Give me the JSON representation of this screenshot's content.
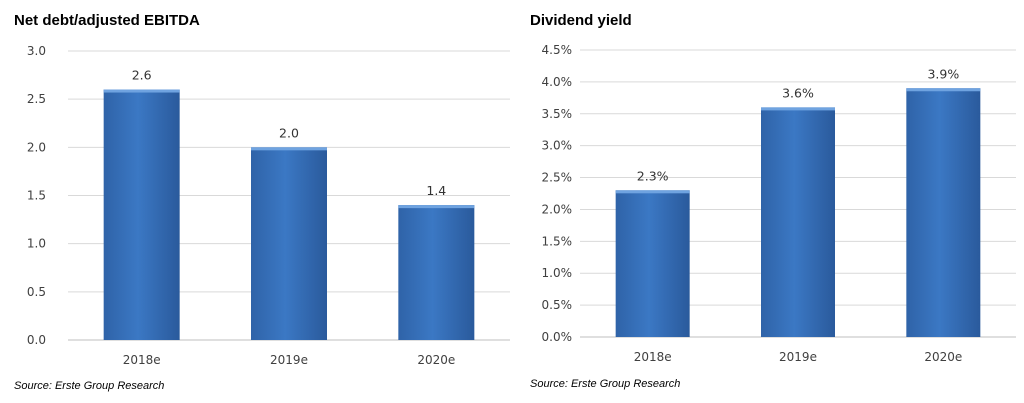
{
  "chart_data": [
    {
      "type": "bar",
      "title": "Net debt/adjusted EBITDA",
      "categories": [
        "2018e",
        "2019e",
        "2020e"
      ],
      "values": [
        2.6,
        2.0,
        1.4
      ],
      "data_labels": [
        "2.6",
        "2.0",
        "1.4"
      ],
      "ylim": [
        0,
        3.0
      ],
      "yticks": [
        "0.0",
        "0.5",
        "1.0",
        "1.5",
        "2.0",
        "2.5",
        "3.0"
      ],
      "ytick_values": [
        0,
        0.5,
        1.0,
        1.5,
        2.0,
        2.5,
        3.0
      ],
      "grid": true,
      "bar_color": "#3b78c4",
      "source": "Source: Erste Group Research"
    },
    {
      "type": "bar",
      "title": "Dividend yield",
      "categories": [
        "2018e",
        "2019e",
        "2020e"
      ],
      "values": [
        2.3,
        3.6,
        3.9
      ],
      "data_labels": [
        "2.3%",
        "3.6%",
        "3.9%"
      ],
      "ylim": [
        0,
        4.5
      ],
      "yticks": [
        "0.0%",
        "0.5%",
        "1.0%",
        "1.5%",
        "2.0%",
        "2.5%",
        "3.0%",
        "3.5%",
        "4.0%",
        "4.5%"
      ],
      "ytick_values": [
        0,
        0.5,
        1.0,
        1.5,
        2.0,
        2.5,
        3.0,
        3.5,
        4.0,
        4.5
      ],
      "grid": true,
      "bar_color": "#3b78c4",
      "source": "Source: Erste Group Research"
    }
  ]
}
